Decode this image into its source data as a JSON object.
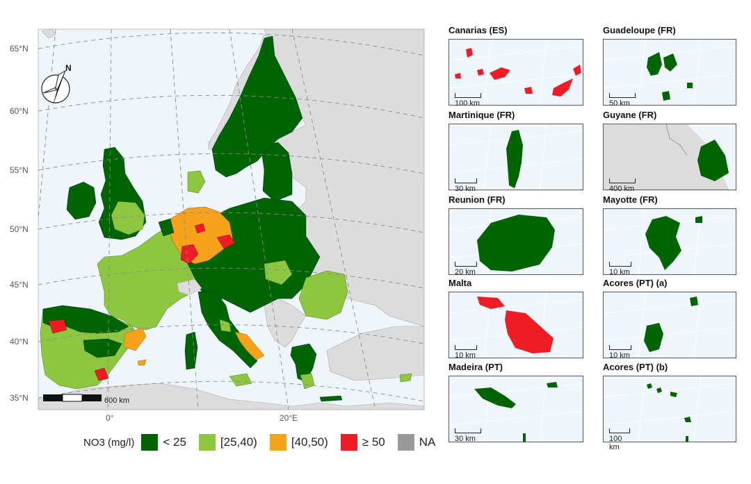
{
  "main_map": {
    "lat_labels": [
      "65°N",
      "60°N",
      "55°N",
      "50°N",
      "45°N",
      "40°N",
      "35°N"
    ],
    "lon_labels": [
      "0°",
      "20°E"
    ],
    "north_arrow": "N",
    "scale": "600 km"
  },
  "legend": {
    "title": "NO3 (mg/l)",
    "classes": [
      {
        "label": "< 25",
        "color": "#006400"
      },
      {
        "label": "[25,40)",
        "color": "#8dc63f"
      },
      {
        "label": "[40,50)",
        "color": "#f7a21b"
      },
      {
        "label": "≥ 50",
        "color": "#ee1c25"
      },
      {
        "label": "NA",
        "color": "#999999"
      }
    ]
  },
  "insets": [
    {
      "title": "Canarias (ES)",
      "scale": "100 km",
      "class": "≥ 50"
    },
    {
      "title": "Guadeloupe (FR)",
      "scale": "50 km",
      "class": "< 25"
    },
    {
      "title": "Martinique (FR)",
      "scale": "30 km",
      "class": "< 25"
    },
    {
      "title": "Guyane (FR)",
      "scale": "400 km",
      "class": "< 25"
    },
    {
      "title": "Reunion (FR)",
      "scale": "20 km",
      "class": "< 25"
    },
    {
      "title": "Mayotte (FR)",
      "scale": "10 km",
      "class": "< 25"
    },
    {
      "title": "Malta",
      "scale": "10 km",
      "class": "≥ 50"
    },
    {
      "title": "Acores (PT) (a)",
      "scale": "10 km",
      "class": "< 25"
    },
    {
      "title": "Madeira (PT)",
      "scale": "30 km",
      "class": "< 25"
    },
    {
      "title": "Acores (PT) (b)",
      "scale": "100 km",
      "class": "< 25"
    }
  ],
  "colors": {
    "sea": "#eef5fb",
    "land_outside": "#dcdcdc",
    "graticule": "#8a8a8a"
  }
}
